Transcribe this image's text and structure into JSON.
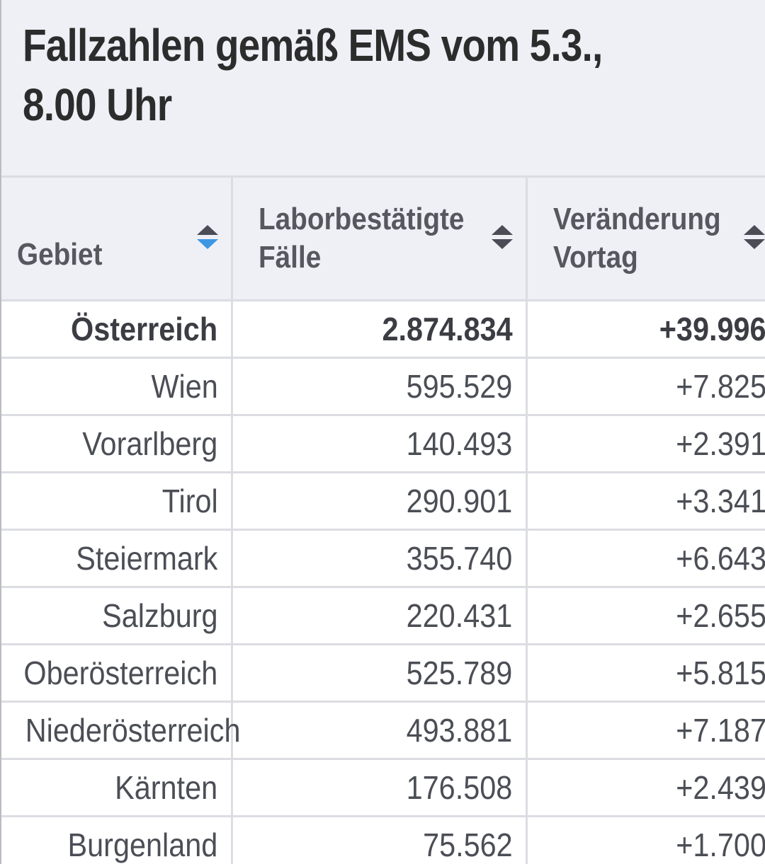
{
  "title": "Fallzahlen gemäß EMS vom 5.3., 8.00 Uhr",
  "table": {
    "headers": [
      {
        "label": "Gebiet",
        "sort": "desc"
      },
      {
        "label": "Laborbestätigte Fälle",
        "sort": "none"
      },
      {
        "label": "Veränderung Vortag",
        "sort": "none"
      }
    ],
    "rows": [
      {
        "gebiet": "Österreich",
        "faelle": "2.874.834",
        "veraenderung": "+39.996",
        "bold": true
      },
      {
        "gebiet": "Wien",
        "faelle": "595.529",
        "veraenderung": "+7.825"
      },
      {
        "gebiet": "Vorarlberg",
        "faelle": "140.493",
        "veraenderung": "+2.391"
      },
      {
        "gebiet": "Tirol",
        "faelle": "290.901",
        "veraenderung": "+3.341"
      },
      {
        "gebiet": "Steiermark",
        "faelle": "355.740",
        "veraenderung": "+6.643"
      },
      {
        "gebiet": "Salzburg",
        "faelle": "220.431",
        "veraenderung": "+2.655"
      },
      {
        "gebiet": "Oberösterreich",
        "faelle": "525.789",
        "veraenderung": "+5.815"
      },
      {
        "gebiet": "Niederösterreich",
        "faelle": "493.881",
        "veraenderung": "+7.187"
      },
      {
        "gebiet": "Kärnten",
        "faelle": "176.508",
        "veraenderung": "+2.439"
      },
      {
        "gebiet": "Burgenland",
        "faelle": "75.562",
        "veraenderung": "+1.700"
      }
    ]
  },
  "colors": {
    "header_bg": "#eff0f6",
    "title_text": "#2c2c2c",
    "cell_text": "#4b4e55",
    "sort_active": "#3d97e3",
    "grid_line": "#dcdde3"
  },
  "icons": {
    "sort": "sort-updown-icon"
  }
}
